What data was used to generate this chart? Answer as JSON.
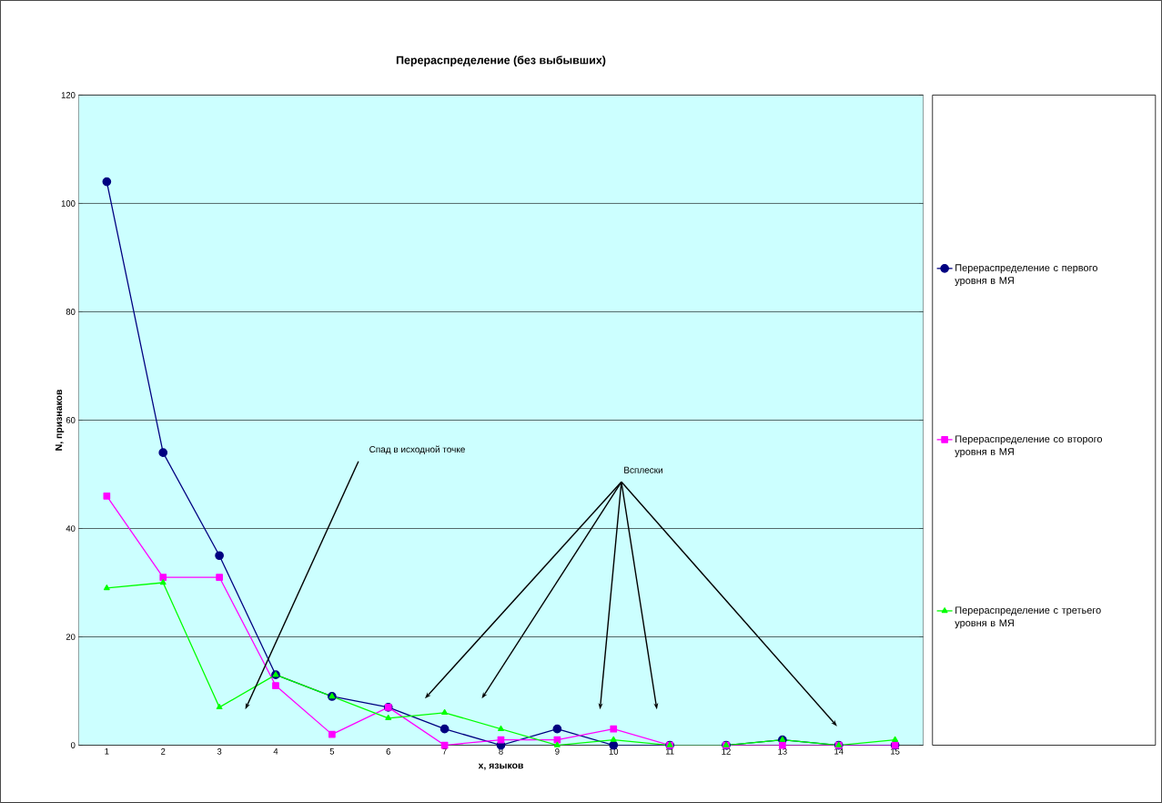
{
  "chart_data": {
    "type": "line",
    "title": "Перераспределение (без выбывших)",
    "xlabel": "x, языков",
    "ylabel": "N, признаков",
    "categories": [
      "1",
      "2",
      "3",
      "4",
      "5",
      "6",
      "7",
      "8",
      "9",
      "10",
      "11",
      "12",
      "13",
      "14",
      "15"
    ],
    "series": [
      {
        "name": "Перераспределение с первого уровня в МЯ",
        "color": "#000080",
        "marker": "circle",
        "values": [
          104,
          54,
          35,
          13,
          9,
          7,
          3,
          0,
          3,
          0,
          0,
          0,
          1,
          0,
          0
        ]
      },
      {
        "name": "Перераспределение со второго уровня в МЯ",
        "color": "#ff00ff",
        "marker": "square",
        "values": [
          46,
          31,
          31,
          11,
          2,
          7,
          0,
          1,
          1,
          3,
          0,
          0,
          0,
          0,
          0
        ]
      },
      {
        "name": "Перераспределение с третьего уровня в МЯ",
        "color": "#00ff00",
        "marker": "triangle",
        "values": [
          29,
          30,
          7,
          13,
          9,
          5,
          6,
          3,
          0,
          1,
          0,
          0,
          1,
          0,
          1
        ]
      }
    ],
    "ylim": [
      0,
      120
    ],
    "yticks": [
      0,
      20,
      40,
      60,
      80,
      100,
      120
    ],
    "grid": "y",
    "legend": "right",
    "annotations": [
      "Спад в исходной точке",
      "Всплески"
    ]
  }
}
